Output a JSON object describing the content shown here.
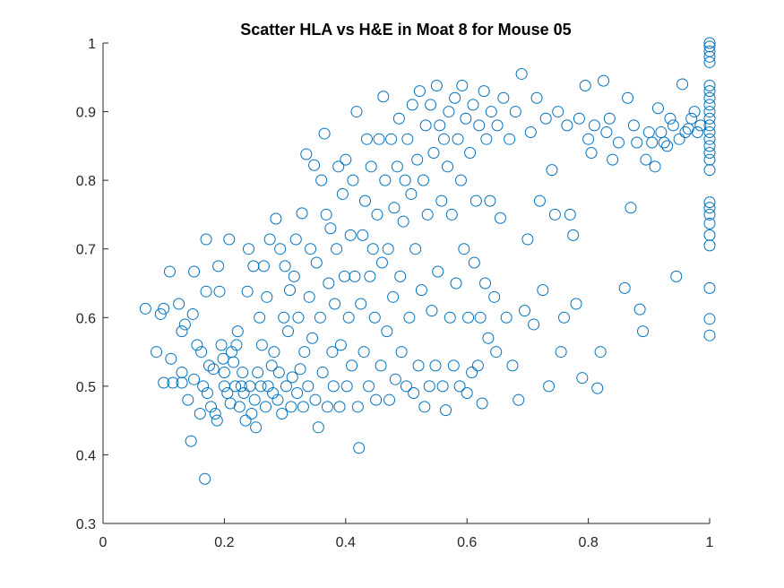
{
  "chart_data": {
    "type": "scatter",
    "title": "Scatter HLA vs H&E in Moat 8 for Mouse 05",
    "xlabel": "",
    "ylabel": "",
    "xlim": [
      0,
      1
    ],
    "ylim": [
      0.3,
      1
    ],
    "x_ticks": [
      0,
      0.2,
      0.4,
      0.6,
      0.8,
      1
    ],
    "x_tick_labels": [
      "0",
      "0.2",
      "0.4",
      "0.6",
      "0.8",
      "1"
    ],
    "y_ticks": [
      0.3,
      0.4,
      0.5,
      0.6,
      0.7,
      0.8,
      0.9,
      1
    ],
    "y_tick_labels": [
      "0.3",
      "0.4",
      "0.5",
      "0.6",
      "0.7",
      "0.8",
      "0.9",
      "1"
    ],
    "grid": false,
    "legend": "none",
    "marker": "circle-open",
    "color": "#0072BD",
    "series": [
      {
        "points": [
          [
            0.07,
            0.613
          ],
          [
            0.088,
            0.55
          ],
          [
            0.095,
            0.605
          ],
          [
            0.1,
            0.613
          ],
          [
            0.1,
            0.505
          ],
          [
            0.11,
            0.667
          ],
          [
            0.112,
            0.54
          ],
          [
            0.115,
            0.505
          ],
          [
            0.125,
            0.62
          ],
          [
            0.13,
            0.58
          ],
          [
            0.13,
            0.505
          ],
          [
            0.13,
            0.52
          ],
          [
            0.135,
            0.59
          ],
          [
            0.14,
            0.48
          ],
          [
            0.145,
            0.42
          ],
          [
            0.148,
            0.605
          ],
          [
            0.15,
            0.51
          ],
          [
            0.15,
            0.667
          ],
          [
            0.155,
            0.56
          ],
          [
            0.16,
            0.46
          ],
          [
            0.162,
            0.55
          ],
          [
            0.165,
            0.5
          ],
          [
            0.168,
            0.365
          ],
          [
            0.17,
            0.714
          ],
          [
            0.17,
            0.638
          ],
          [
            0.172,
            0.49
          ],
          [
            0.175,
            0.53
          ],
          [
            0.178,
            0.47
          ],
          [
            0.182,
            0.525
          ],
          [
            0.185,
            0.46
          ],
          [
            0.188,
            0.45
          ],
          [
            0.19,
            0.675
          ],
          [
            0.192,
            0.638
          ],
          [
            0.195,
            0.56
          ],
          [
            0.198,
            0.54
          ],
          [
            0.2,
            0.5
          ],
          [
            0.2,
            0.52
          ],
          [
            0.205,
            0.49
          ],
          [
            0.208,
            0.714
          ],
          [
            0.21,
            0.475
          ],
          [
            0.212,
            0.55
          ],
          [
            0.215,
            0.535
          ],
          [
            0.218,
            0.5
          ],
          [
            0.22,
            0.56
          ],
          [
            0.222,
            0.58
          ],
          [
            0.225,
            0.47
          ],
          [
            0.228,
            0.5
          ],
          [
            0.23,
            0.52
          ],
          [
            0.232,
            0.49
          ],
          [
            0.235,
            0.45
          ],
          [
            0.238,
            0.638
          ],
          [
            0.24,
            0.7
          ],
          [
            0.242,
            0.5
          ],
          [
            0.245,
            0.46
          ],
          [
            0.248,
            0.675
          ],
          [
            0.25,
            0.48
          ],
          [
            0.252,
            0.44
          ],
          [
            0.255,
            0.52
          ],
          [
            0.258,
            0.6
          ],
          [
            0.26,
            0.5
          ],
          [
            0.262,
            0.56
          ],
          [
            0.265,
            0.675
          ],
          [
            0.268,
            0.47
          ],
          [
            0.27,
            0.63
          ],
          [
            0.272,
            0.5
          ],
          [
            0.275,
            0.714
          ],
          [
            0.278,
            0.53
          ],
          [
            0.28,
            0.49
          ],
          [
            0.282,
            0.55
          ],
          [
            0.285,
            0.744
          ],
          [
            0.288,
            0.48
          ],
          [
            0.29,
            0.52
          ],
          [
            0.292,
            0.7
          ],
          [
            0.295,
            0.46
          ],
          [
            0.298,
            0.6
          ],
          [
            0.3,
            0.675
          ],
          [
            0.302,
            0.5
          ],
          [
            0.305,
            0.58
          ],
          [
            0.308,
            0.64
          ],
          [
            0.31,
            0.47
          ],
          [
            0.312,
            0.513
          ],
          [
            0.315,
            0.66
          ],
          [
            0.318,
            0.714
          ],
          [
            0.32,
            0.49
          ],
          [
            0.322,
            0.6
          ],
          [
            0.325,
            0.525
          ],
          [
            0.328,
            0.752
          ],
          [
            0.33,
            0.47
          ],
          [
            0.332,
            0.55
          ],
          [
            0.335,
            0.838
          ],
          [
            0.338,
            0.5
          ],
          [
            0.34,
            0.63
          ],
          [
            0.342,
            0.7
          ],
          [
            0.345,
            0.57
          ],
          [
            0.348,
            0.822
          ],
          [
            0.35,
            0.48
          ],
          [
            0.352,
            0.68
          ],
          [
            0.355,
            0.44
          ],
          [
            0.358,
            0.6
          ],
          [
            0.36,
            0.8
          ],
          [
            0.362,
            0.52
          ],
          [
            0.365,
            0.868
          ],
          [
            0.368,
            0.75
          ],
          [
            0.37,
            0.47
          ],
          [
            0.372,
            0.65
          ],
          [
            0.375,
            0.73
          ],
          [
            0.378,
            0.55
          ],
          [
            0.38,
            0.5
          ],
          [
            0.382,
            0.62
          ],
          [
            0.385,
            0.7
          ],
          [
            0.388,
            0.82
          ],
          [
            0.39,
            0.47
          ],
          [
            0.392,
            0.56
          ],
          [
            0.395,
            0.78
          ],
          [
            0.398,
            0.66
          ],
          [
            0.4,
            0.83
          ],
          [
            0.402,
            0.5
          ],
          [
            0.405,
            0.6
          ],
          [
            0.408,
            0.72
          ],
          [
            0.41,
            0.53
          ],
          [
            0.412,
            0.8
          ],
          [
            0.415,
            0.66
          ],
          [
            0.418,
            0.9
          ],
          [
            0.42,
            0.47
          ],
          [
            0.422,
            0.41
          ],
          [
            0.425,
            0.62
          ],
          [
            0.428,
            0.72
          ],
          [
            0.43,
            0.55
          ],
          [
            0.432,
            0.77
          ],
          [
            0.435,
            0.86
          ],
          [
            0.438,
            0.5
          ],
          [
            0.44,
            0.66
          ],
          [
            0.442,
            0.82
          ],
          [
            0.445,
            0.7
          ],
          [
            0.448,
            0.6
          ],
          [
            0.45,
            0.48
          ],
          [
            0.452,
            0.75
          ],
          [
            0.455,
            0.86
          ],
          [
            0.458,
            0.53
          ],
          [
            0.46,
            0.68
          ],
          [
            0.462,
            0.922
          ],
          [
            0.465,
            0.8
          ],
          [
            0.468,
            0.58
          ],
          [
            0.47,
            0.7
          ],
          [
            0.472,
            0.48
          ],
          [
            0.475,
            0.86
          ],
          [
            0.478,
            0.63
          ],
          [
            0.48,
            0.76
          ],
          [
            0.482,
            0.51
          ],
          [
            0.485,
            0.82
          ],
          [
            0.488,
            0.89
          ],
          [
            0.49,
            0.66
          ],
          [
            0.492,
            0.55
          ],
          [
            0.495,
            0.74
          ],
          [
            0.498,
            0.8
          ],
          [
            0.5,
            0.5
          ],
          [
            0.502,
            0.86
          ],
          [
            0.505,
            0.6
          ],
          [
            0.508,
            0.78
          ],
          [
            0.51,
            0.91
          ],
          [
            0.512,
            0.49
          ],
          [
            0.515,
            0.7
          ],
          [
            0.518,
            0.83
          ],
          [
            0.52,
            0.53
          ],
          [
            0.522,
            0.93
          ],
          [
            0.525,
            0.64
          ],
          [
            0.528,
            0.8
          ],
          [
            0.53,
            0.47
          ],
          [
            0.532,
            0.88
          ],
          [
            0.535,
            0.75
          ],
          [
            0.538,
            0.5
          ],
          [
            0.54,
            0.91
          ],
          [
            0.542,
            0.61
          ],
          [
            0.545,
            0.84
          ],
          [
            0.548,
            0.53
          ],
          [
            0.55,
            0.938
          ],
          [
            0.552,
            0.667
          ],
          [
            0.555,
            0.88
          ],
          [
            0.558,
            0.77
          ],
          [
            0.56,
            0.5
          ],
          [
            0.562,
            0.86
          ],
          [
            0.565,
            0.465
          ],
          [
            0.568,
            0.82
          ],
          [
            0.57,
            0.9
          ],
          [
            0.572,
            0.6
          ],
          [
            0.575,
            0.75
          ],
          [
            0.578,
            0.53
          ],
          [
            0.58,
            0.92
          ],
          [
            0.582,
            0.65
          ],
          [
            0.585,
            0.86
          ],
          [
            0.588,
            0.5
          ],
          [
            0.59,
            0.8
          ],
          [
            0.592,
            0.938
          ],
          [
            0.595,
            0.7
          ],
          [
            0.598,
            0.89
          ],
          [
            0.6,
            0.49
          ],
          [
            0.602,
            0.6
          ],
          [
            0.605,
            0.84
          ],
          [
            0.608,
            0.52
          ],
          [
            0.61,
            0.91
          ],
          [
            0.612,
            0.68
          ],
          [
            0.615,
            0.77
          ],
          [
            0.618,
            0.53
          ],
          [
            0.62,
            0.88
          ],
          [
            0.622,
            0.6
          ],
          [
            0.625,
            0.475
          ],
          [
            0.628,
            0.93
          ],
          [
            0.63,
            0.65
          ],
          [
            0.632,
            0.86
          ],
          [
            0.635,
            0.57
          ],
          [
            0.638,
            0.77
          ],
          [
            0.64,
            0.9
          ],
          [
            0.645,
            0.63
          ],
          [
            0.648,
            0.55
          ],
          [
            0.65,
            0.88
          ],
          [
            0.655,
            0.745
          ],
          [
            0.66,
            0.92
          ],
          [
            0.665,
            0.6
          ],
          [
            0.67,
            0.86
          ],
          [
            0.675,
            0.53
          ],
          [
            0.68,
            0.9
          ],
          [
            0.685,
            0.48
          ],
          [
            0.69,
            0.955
          ],
          [
            0.695,
            0.61
          ],
          [
            0.7,
            0.714
          ],
          [
            0.705,
            0.87
          ],
          [
            0.71,
            0.59
          ],
          [
            0.715,
            0.92
          ],
          [
            0.72,
            0.77
          ],
          [
            0.725,
            0.64
          ],
          [
            0.73,
            0.89
          ],
          [
            0.735,
            0.5
          ],
          [
            0.74,
            0.815
          ],
          [
            0.745,
            0.75
          ],
          [
            0.75,
            0.9
          ],
          [
            0.755,
            0.55
          ],
          [
            0.76,
            0.6
          ],
          [
            0.765,
            0.88
          ],
          [
            0.77,
            0.75
          ],
          [
            0.775,
            0.72
          ],
          [
            0.78,
            0.62
          ],
          [
            0.785,
            0.89
          ],
          [
            0.79,
            0.512
          ],
          [
            0.795,
            0.938
          ],
          [
            0.8,
            0.86
          ],
          [
            0.805,
            0.84
          ],
          [
            0.81,
            0.88
          ],
          [
            0.815,
            0.497
          ],
          [
            0.82,
            0.55
          ],
          [
            0.825,
            0.945
          ],
          [
            0.83,
            0.87
          ],
          [
            0.835,
            0.89
          ],
          [
            0.84,
            0.83
          ],
          [
            0.85,
            0.855
          ],
          [
            0.86,
            0.643
          ],
          [
            0.865,
            0.92
          ],
          [
            0.87,
            0.76
          ],
          [
            0.875,
            0.88
          ],
          [
            0.88,
            0.855
          ],
          [
            0.885,
            0.612
          ],
          [
            0.89,
            0.58
          ],
          [
            0.895,
            0.83
          ],
          [
            0.9,
            0.87
          ],
          [
            0.905,
            0.855
          ],
          [
            0.91,
            0.82
          ],
          [
            0.915,
            0.905
          ],
          [
            0.92,
            0.87
          ],
          [
            0.925,
            0.855
          ],
          [
            0.93,
            0.85
          ],
          [
            0.935,
            0.89
          ],
          [
            0.94,
            0.88
          ],
          [
            0.945,
            0.66
          ],
          [
            0.95,
            0.86
          ],
          [
            0.955,
            0.94
          ],
          [
            0.96,
            0.87
          ],
          [
            0.965,
            0.875
          ],
          [
            0.97,
            0.89
          ],
          [
            0.975,
            0.9
          ],
          [
            0.98,
            0.87
          ],
          [
            0.985,
            0.88
          ],
          [
            1,
            0.574
          ],
          [
            1,
            0.598
          ],
          [
            1,
            0.643
          ],
          [
            1,
            0.705
          ],
          [
            1,
            0.72
          ],
          [
            1,
            0.737
          ],
          [
            1,
            0.75
          ],
          [
            1,
            0.76
          ],
          [
            1,
            0.768
          ],
          [
            1,
            0.815
          ],
          [
            1,
            0.83
          ],
          [
            1,
            0.84
          ],
          [
            1,
            0.85
          ],
          [
            1,
            0.86
          ],
          [
            1,
            0.87
          ],
          [
            1,
            0.88
          ],
          [
            1,
            0.89
          ],
          [
            1,
            0.9
          ],
          [
            1,
            0.91
          ],
          [
            1,
            0.92
          ],
          [
            1,
            0.93
          ],
          [
            1,
            0.938
          ],
          [
            1,
            0.972
          ],
          [
            1,
            0.98
          ],
          [
            1,
            0.988
          ],
          [
            1,
            0.995
          ],
          [
            1,
            1.0
          ]
        ]
      }
    ]
  }
}
